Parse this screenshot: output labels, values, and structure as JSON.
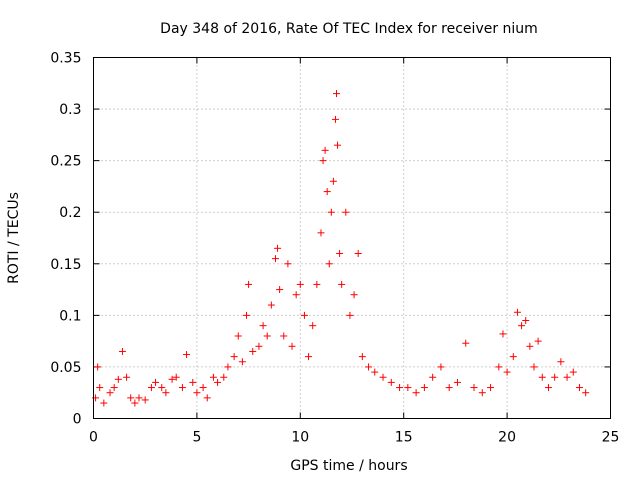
{
  "chart_data": {
    "type": "scatter",
    "title": "Day 348 of 2016, Rate Of TEC Index for receiver nium",
    "xlabel": "GPS time / hours",
    "ylabel": "ROTI / TECUs",
    "xlim": [
      0,
      25
    ],
    "ylim": [
      0,
      0.35
    ],
    "x_ticks": [
      "0",
      "5",
      "10",
      "15",
      "20",
      "25"
    ],
    "y_ticks": [
      "0",
      "0.05",
      "0.1",
      "0.15",
      "0.2",
      "0.25",
      "0.3",
      "0.35"
    ],
    "grid": true,
    "marker": "+",
    "color": "#ff0000",
    "series": [
      {
        "points": [
          [
            0.1,
            0.02
          ],
          [
            0.2,
            0.05
          ],
          [
            0.3,
            0.03
          ],
          [
            0.5,
            0.015
          ],
          [
            0.8,
            0.025
          ],
          [
            1.0,
            0.03
          ],
          [
            1.2,
            0.038
          ],
          [
            1.4,
            0.065
          ],
          [
            1.6,
            0.04
          ],
          [
            1.8,
            0.02
          ],
          [
            2.0,
            0.015
          ],
          [
            2.2,
            0.02
          ],
          [
            2.5,
            0.018
          ],
          [
            2.8,
            0.03
          ],
          [
            3.0,
            0.035
          ],
          [
            3.3,
            0.03
          ],
          [
            3.5,
            0.025
          ],
          [
            3.8,
            0.038
          ],
          [
            4.0,
            0.04
          ],
          [
            4.3,
            0.03
          ],
          [
            4.5,
            0.062
          ],
          [
            4.8,
            0.035
          ],
          [
            5.0,
            0.025
          ],
          [
            5.3,
            0.03
          ],
          [
            5.5,
            0.02
          ],
          [
            5.8,
            0.04
          ],
          [
            6.0,
            0.035
          ],
          [
            6.3,
            0.04
          ],
          [
            6.5,
            0.05
          ],
          [
            6.8,
            0.06
          ],
          [
            7.0,
            0.08
          ],
          [
            7.2,
            0.055
          ],
          [
            7.4,
            0.1
          ],
          [
            7.5,
            0.13
          ],
          [
            7.7,
            0.065
          ],
          [
            8.0,
            0.07
          ],
          [
            8.2,
            0.09
          ],
          [
            8.4,
            0.08
          ],
          [
            8.6,
            0.11
          ],
          [
            8.8,
            0.155
          ],
          [
            8.9,
            0.165
          ],
          [
            9.0,
            0.125
          ],
          [
            9.2,
            0.08
          ],
          [
            9.4,
            0.15
          ],
          [
            9.6,
            0.07
          ],
          [
            9.8,
            0.12
          ],
          [
            10.0,
            0.13
          ],
          [
            10.2,
            0.1
          ],
          [
            10.4,
            0.06
          ],
          [
            10.6,
            0.09
          ],
          [
            10.8,
            0.13
          ],
          [
            11.0,
            0.18
          ],
          [
            11.1,
            0.25
          ],
          [
            11.2,
            0.26
          ],
          [
            11.3,
            0.22
          ],
          [
            11.4,
            0.15
          ],
          [
            11.5,
            0.2
          ],
          [
            11.6,
            0.23
          ],
          [
            11.7,
            0.29
          ],
          [
            11.75,
            0.315
          ],
          [
            11.8,
            0.265
          ],
          [
            11.9,
            0.16
          ],
          [
            12.0,
            0.13
          ],
          [
            12.2,
            0.2
          ],
          [
            12.4,
            0.1
          ],
          [
            12.6,
            0.12
          ],
          [
            12.8,
            0.16
          ],
          [
            13.0,
            0.06
          ],
          [
            13.3,
            0.05
          ],
          [
            13.6,
            0.045
          ],
          [
            14.0,
            0.04
          ],
          [
            14.4,
            0.035
          ],
          [
            14.8,
            0.03
          ],
          [
            15.2,
            0.03
          ],
          [
            15.6,
            0.025
          ],
          [
            16.0,
            0.03
          ],
          [
            16.4,
            0.04
          ],
          [
            16.8,
            0.05
          ],
          [
            17.2,
            0.03
          ],
          [
            17.6,
            0.035
          ],
          [
            18.0,
            0.073
          ],
          [
            18.4,
            0.03
          ],
          [
            18.8,
            0.025
          ],
          [
            19.2,
            0.03
          ],
          [
            19.6,
            0.05
          ],
          [
            19.8,
            0.082
          ],
          [
            20.0,
            0.045
          ],
          [
            20.3,
            0.06
          ],
          [
            20.5,
            0.103
          ],
          [
            20.7,
            0.09
          ],
          [
            20.9,
            0.095
          ],
          [
            21.1,
            0.07
          ],
          [
            21.3,
            0.05
          ],
          [
            21.5,
            0.075
          ],
          [
            21.7,
            0.04
          ],
          [
            22.0,
            0.03
          ],
          [
            22.3,
            0.04
          ],
          [
            22.6,
            0.055
          ],
          [
            22.9,
            0.04
          ],
          [
            23.2,
            0.045
          ],
          [
            23.5,
            0.03
          ],
          [
            23.8,
            0.025
          ]
        ]
      }
    ]
  }
}
